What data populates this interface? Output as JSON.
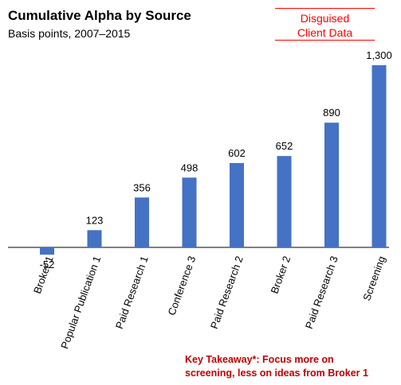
{
  "chart_data": {
    "type": "bar",
    "title": "Cumulative Alpha by Source",
    "subtitle": "Basis points, 2007–2015",
    "categories": [
      "Broker 1",
      "Popular Publication 1",
      "Paid Research 1",
      "Conference 3",
      "Paid Research 2",
      "Broker 2",
      "Paid Research 3",
      "Screening"
    ],
    "values": [
      -52,
      123,
      356,
      498,
      602,
      652,
      890,
      1300
    ],
    "value_labels": [
      "-52",
      "123",
      "356",
      "498",
      "602",
      "652",
      "890",
      "1,300"
    ],
    "xlabel": "",
    "ylabel": "",
    "ylim": [
      -100,
      1300
    ],
    "grid": false,
    "legend": "none",
    "bar_color": "#4472c4"
  },
  "stamp": {
    "line1": "Disguised",
    "line2": "Client Data"
  },
  "takeaway": {
    "line1": "Key Takeaway*: Focus more on",
    "line2": "screening, less on ideas from Broker 1"
  },
  "colors": {
    "accent": "#ff0000",
    "takeaway": "#c00000",
    "bar": "#4472c4"
  }
}
